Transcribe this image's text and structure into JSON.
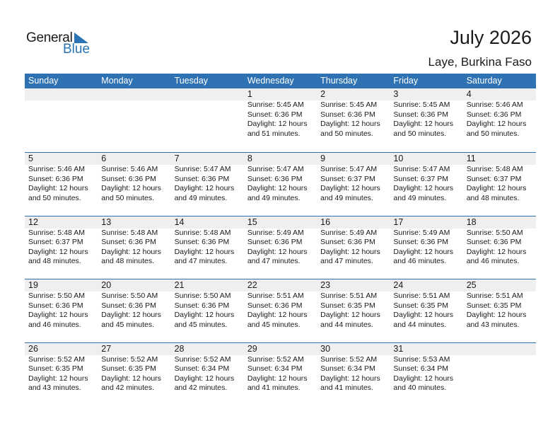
{
  "logo": {
    "general": "General",
    "blue": "Blue"
  },
  "header": {
    "title": "July 2026",
    "location": "Laye, Burkina Faso"
  },
  "colors": {
    "accent": "#2f72b3",
    "date_band": "#efefef"
  },
  "weekdays": [
    "Sunday",
    "Monday",
    "Tuesday",
    "Wednesday",
    "Thursday",
    "Friday",
    "Saturday"
  ],
  "weeks": [
    [
      null,
      null,
      null,
      {
        "day": "1",
        "sunrise": "Sunrise: 5:45 AM",
        "sunset": "Sunset: 6:36 PM",
        "daylight1": "Daylight: 12 hours",
        "daylight2": "and 51 minutes."
      },
      {
        "day": "2",
        "sunrise": "Sunrise: 5:45 AM",
        "sunset": "Sunset: 6:36 PM",
        "daylight1": "Daylight: 12 hours",
        "daylight2": "and 50 minutes."
      },
      {
        "day": "3",
        "sunrise": "Sunrise: 5:45 AM",
        "sunset": "Sunset: 6:36 PM",
        "daylight1": "Daylight: 12 hours",
        "daylight2": "and 50 minutes."
      },
      {
        "day": "4",
        "sunrise": "Sunrise: 5:46 AM",
        "sunset": "Sunset: 6:36 PM",
        "daylight1": "Daylight: 12 hours",
        "daylight2": "and 50 minutes."
      }
    ],
    [
      {
        "day": "5",
        "sunrise": "Sunrise: 5:46 AM",
        "sunset": "Sunset: 6:36 PM",
        "daylight1": "Daylight: 12 hours",
        "daylight2": "and 50 minutes."
      },
      {
        "day": "6",
        "sunrise": "Sunrise: 5:46 AM",
        "sunset": "Sunset: 6:36 PM",
        "daylight1": "Daylight: 12 hours",
        "daylight2": "and 50 minutes."
      },
      {
        "day": "7",
        "sunrise": "Sunrise: 5:47 AM",
        "sunset": "Sunset: 6:36 PM",
        "daylight1": "Daylight: 12 hours",
        "daylight2": "and 49 minutes."
      },
      {
        "day": "8",
        "sunrise": "Sunrise: 5:47 AM",
        "sunset": "Sunset: 6:36 PM",
        "daylight1": "Daylight: 12 hours",
        "daylight2": "and 49 minutes."
      },
      {
        "day": "9",
        "sunrise": "Sunrise: 5:47 AM",
        "sunset": "Sunset: 6:37 PM",
        "daylight1": "Daylight: 12 hours",
        "daylight2": "and 49 minutes."
      },
      {
        "day": "10",
        "sunrise": "Sunrise: 5:47 AM",
        "sunset": "Sunset: 6:37 PM",
        "daylight1": "Daylight: 12 hours",
        "daylight2": "and 49 minutes."
      },
      {
        "day": "11",
        "sunrise": "Sunrise: 5:48 AM",
        "sunset": "Sunset: 6:37 PM",
        "daylight1": "Daylight: 12 hours",
        "daylight2": "and 48 minutes."
      }
    ],
    [
      {
        "day": "12",
        "sunrise": "Sunrise: 5:48 AM",
        "sunset": "Sunset: 6:37 PM",
        "daylight1": "Daylight: 12 hours",
        "daylight2": "and 48 minutes."
      },
      {
        "day": "13",
        "sunrise": "Sunrise: 5:48 AM",
        "sunset": "Sunset: 6:36 PM",
        "daylight1": "Daylight: 12 hours",
        "daylight2": "and 48 minutes."
      },
      {
        "day": "14",
        "sunrise": "Sunrise: 5:48 AM",
        "sunset": "Sunset: 6:36 PM",
        "daylight1": "Daylight: 12 hours",
        "daylight2": "and 47 minutes."
      },
      {
        "day": "15",
        "sunrise": "Sunrise: 5:49 AM",
        "sunset": "Sunset: 6:36 PM",
        "daylight1": "Daylight: 12 hours",
        "daylight2": "and 47 minutes."
      },
      {
        "day": "16",
        "sunrise": "Sunrise: 5:49 AM",
        "sunset": "Sunset: 6:36 PM",
        "daylight1": "Daylight: 12 hours",
        "daylight2": "and 47 minutes."
      },
      {
        "day": "17",
        "sunrise": "Sunrise: 5:49 AM",
        "sunset": "Sunset: 6:36 PM",
        "daylight1": "Daylight: 12 hours",
        "daylight2": "and 46 minutes."
      },
      {
        "day": "18",
        "sunrise": "Sunrise: 5:50 AM",
        "sunset": "Sunset: 6:36 PM",
        "daylight1": "Daylight: 12 hours",
        "daylight2": "and 46 minutes."
      }
    ],
    [
      {
        "day": "19",
        "sunrise": "Sunrise: 5:50 AM",
        "sunset": "Sunset: 6:36 PM",
        "daylight1": "Daylight: 12 hours",
        "daylight2": "and 46 minutes."
      },
      {
        "day": "20",
        "sunrise": "Sunrise: 5:50 AM",
        "sunset": "Sunset: 6:36 PM",
        "daylight1": "Daylight: 12 hours",
        "daylight2": "and 45 minutes."
      },
      {
        "day": "21",
        "sunrise": "Sunrise: 5:50 AM",
        "sunset": "Sunset: 6:36 PM",
        "daylight1": "Daylight: 12 hours",
        "daylight2": "and 45 minutes."
      },
      {
        "day": "22",
        "sunrise": "Sunrise: 5:51 AM",
        "sunset": "Sunset: 6:36 PM",
        "daylight1": "Daylight: 12 hours",
        "daylight2": "and 45 minutes."
      },
      {
        "day": "23",
        "sunrise": "Sunrise: 5:51 AM",
        "sunset": "Sunset: 6:35 PM",
        "daylight1": "Daylight: 12 hours",
        "daylight2": "and 44 minutes."
      },
      {
        "day": "24",
        "sunrise": "Sunrise: 5:51 AM",
        "sunset": "Sunset: 6:35 PM",
        "daylight1": "Daylight: 12 hours",
        "daylight2": "and 44 minutes."
      },
      {
        "day": "25",
        "sunrise": "Sunrise: 5:51 AM",
        "sunset": "Sunset: 6:35 PM",
        "daylight1": "Daylight: 12 hours",
        "daylight2": "and 43 minutes."
      }
    ],
    [
      {
        "day": "26",
        "sunrise": "Sunrise: 5:52 AM",
        "sunset": "Sunset: 6:35 PM",
        "daylight1": "Daylight: 12 hours",
        "daylight2": "and 43 minutes."
      },
      {
        "day": "27",
        "sunrise": "Sunrise: 5:52 AM",
        "sunset": "Sunset: 6:35 PM",
        "daylight1": "Daylight: 12 hours",
        "daylight2": "and 42 minutes."
      },
      {
        "day": "28",
        "sunrise": "Sunrise: 5:52 AM",
        "sunset": "Sunset: 6:34 PM",
        "daylight1": "Daylight: 12 hours",
        "daylight2": "and 42 minutes."
      },
      {
        "day": "29",
        "sunrise": "Sunrise: 5:52 AM",
        "sunset": "Sunset: 6:34 PM",
        "daylight1": "Daylight: 12 hours",
        "daylight2": "and 41 minutes."
      },
      {
        "day": "30",
        "sunrise": "Sunrise: 5:52 AM",
        "sunset": "Sunset: 6:34 PM",
        "daylight1": "Daylight: 12 hours",
        "daylight2": "and 41 minutes."
      },
      {
        "day": "31",
        "sunrise": "Sunrise: 5:53 AM",
        "sunset": "Sunset: 6:34 PM",
        "daylight1": "Daylight: 12 hours",
        "daylight2": "and 40 minutes."
      },
      null
    ]
  ]
}
